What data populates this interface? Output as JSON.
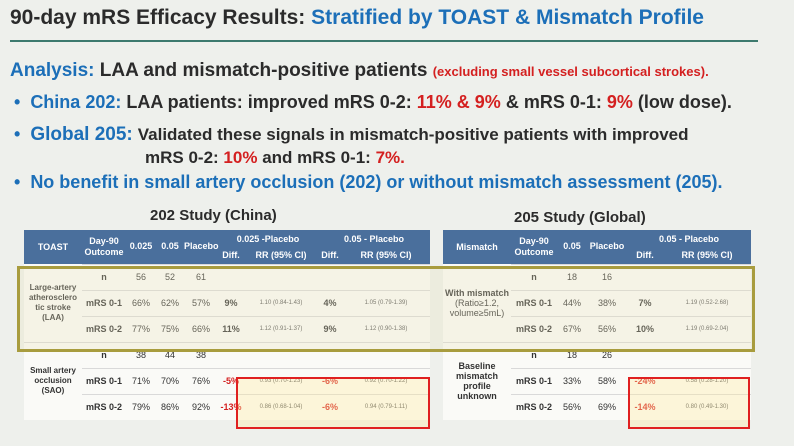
{
  "title": {
    "main": "90-day mRS Efficacy Results:",
    "sub": "Stratified by TOAST & Mismatch Profile"
  },
  "analysis": {
    "label": "Analysis:",
    "text": "LAA and mismatch-positive patients",
    "note": "(excluding small vessel subcortical strokes)."
  },
  "bullets": {
    "b1": {
      "lead": "China 202:",
      "text1": "LAA patients: improved mRS 0-2:",
      "v1": "11% & 9%",
      "text2": "& mRS 0-1:",
      "v2": "9%",
      "text3": "(low dose)."
    },
    "b2": {
      "lead": "Global 205:",
      "text1": "Validated these signals in mismatch-positive patients with improved",
      "text2": "mRS 0-2:",
      "v1": "10%",
      "text3": "and mRS 0-1:",
      "v2": "7%."
    },
    "b3": {
      "text": "No benefit in small artery occlusion (202) or without mismatch assessment (205)."
    }
  },
  "study202": {
    "title": "202 Study (China)",
    "headers": {
      "toast": "TOAST",
      "outcome": "Day-90 Outcome",
      "d1": "0.025",
      "d2": "0.05",
      "placebo": "Placebo",
      "g1": "0.025 -Placebo",
      "g2": "0.05 - Placebo",
      "diff": "Diff.",
      "rr": "RR (95% CI)"
    },
    "groups": [
      {
        "label": "Large-artery atherosclero tic stroke (LAA)",
        "rows": [
          {
            "outcome": "n",
            "d1": "56",
            "d2": "52",
            "placebo": "61",
            "diff1": "",
            "rr1": "",
            "diff2": "",
            "rr2": ""
          },
          {
            "outcome": "mRS 0-1",
            "d1": "66%",
            "d2": "62%",
            "placebo": "57%",
            "diff1": "9%",
            "rr1": "1.10 (0.84-1.43)",
            "diff2": "4%",
            "rr2": "1.05 (0.79-1.39)"
          },
          {
            "outcome": "mRS 0-2",
            "d1": "77%",
            "d2": "75%",
            "placebo": "66%",
            "diff1": "11%",
            "rr1": "1.12 (0.91-1.37)",
            "diff2": "9%",
            "rr2": "1.12 (0.90-1.38)"
          }
        ]
      },
      {
        "label": "Small artery occlusion (SAO)",
        "rows": [
          {
            "outcome": "n",
            "d1": "38",
            "d2": "44",
            "placebo": "38",
            "diff1": "",
            "rr1": "",
            "diff2": "",
            "rr2": ""
          },
          {
            "outcome": "mRS 0-1",
            "d1": "71%",
            "d2": "70%",
            "placebo": "76%",
            "diff1": "-5%",
            "rr1": "0.93 (0.70-1.23)",
            "diff2": "-6%",
            "rr2": "0.92 (0.70-1.22)"
          },
          {
            "outcome": "mRS 0-2",
            "d1": "79%",
            "d2": "86%",
            "placebo": "92%",
            "diff1": "-13%",
            "rr1": "0.86 (0.68-1.04)",
            "diff2": "-6%",
            "rr2": "0.94 (0.79-1.11)"
          }
        ]
      }
    ]
  },
  "study205": {
    "title": "205 Study (Global)",
    "headers": {
      "mismatch": "Mismatch",
      "outcome": "Day-90 Outcome",
      "d2": "0.05",
      "placebo": "Placebo",
      "g2": "0.05 - Placebo",
      "diff": "Diff.",
      "rr": "RR (95% CI)"
    },
    "groups": [
      {
        "label": "With mismatch",
        "sublabel": "(Ratio≥1.2, volume≥5mL)",
        "rows": [
          {
            "outcome": "n",
            "d2": "18",
            "placebo": "16",
            "diff": "",
            "rr": ""
          },
          {
            "outcome": "mRS 0-1",
            "d2": "44%",
            "placebo": "38%",
            "diff": "7%",
            "rr": "1.19 (0.52-2.68)"
          },
          {
            "outcome": "mRS 0-2",
            "d2": "67%",
            "placebo": "56%",
            "diff": "10%",
            "rr": "1.19 (0.69-2.04)"
          }
        ]
      },
      {
        "label": "Baseline mismatch profile unknown",
        "sublabel": "",
        "rows": [
          {
            "outcome": "n",
            "d2": "18",
            "placebo": "26",
            "diff": "",
            "rr": ""
          },
          {
            "outcome": "mRS 0-1",
            "d2": "33%",
            "placebo": "58%",
            "diff": "-24%",
            "rr": "0.58 (0.28-1.20)"
          },
          {
            "outcome": "mRS 0-2",
            "d2": "56%",
            "placebo": "69%",
            "diff": "-14%",
            "rr": "0.80 (0.49-1.30)"
          }
        ]
      }
    ]
  },
  "colors": {
    "accent": "#1c6fb8",
    "highlight": "#d42020",
    "header": "#4a6f9c",
    "laa_box": "#a89c3e"
  }
}
